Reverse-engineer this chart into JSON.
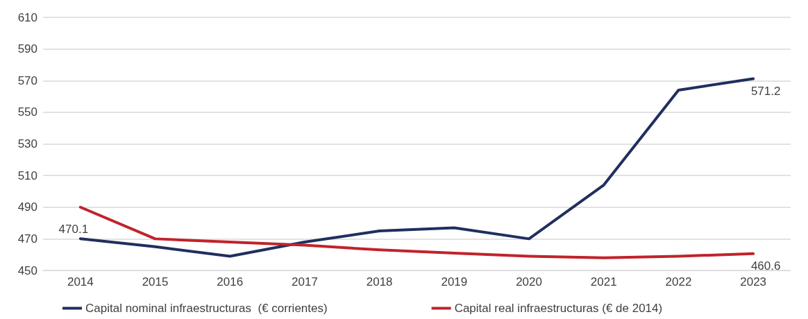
{
  "chart_data": {
    "type": "line",
    "categories": [
      "2014",
      "2015",
      "2016",
      "2017",
      "2018",
      "2019",
      "2020",
      "2021",
      "2022",
      "2023"
    ],
    "series": [
      {
        "name": "Capital nominal infraestructuras  (€ corrientes)",
        "color": "#1f2f5e",
        "values": [
          470.1,
          465,
          459,
          468,
          475,
          477,
          470,
          504,
          564,
          571.2
        ],
        "value_labels": [
          "470.1",
          null,
          null,
          null,
          null,
          null,
          null,
          null,
          null,
          "571.2"
        ]
      },
      {
        "name": "Capital real infraestructuras (€ de 2014)",
        "color": "#c0232c",
        "values": [
          490,
          470,
          468,
          466,
          463,
          461,
          459,
          458,
          459,
          460.6
        ],
        "value_labels": [
          null,
          null,
          null,
          null,
          null,
          null,
          null,
          null,
          null,
          "460.6"
        ]
      }
    ],
    "ylim": [
      450,
      610
    ],
    "yticks": [
      450,
      470,
      490,
      510,
      530,
      550,
      570,
      590,
      610
    ],
    "grid": "y",
    "legend": "bottom",
    "marker": "none",
    "line_style": "solid"
  }
}
